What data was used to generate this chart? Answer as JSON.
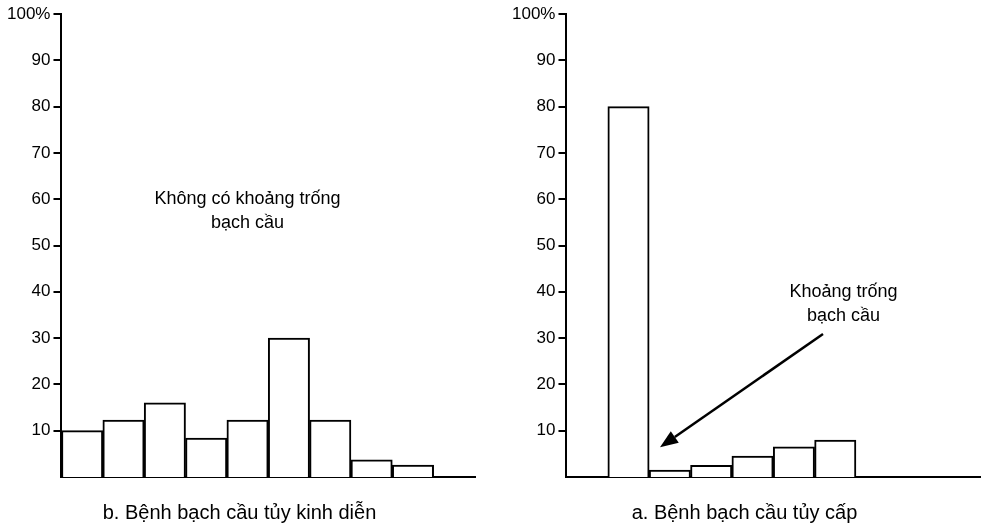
{
  "chart_data": [
    {
      "type": "bar",
      "title": "b. Bệnh bạch cầu tủy kinh diễn",
      "categories": [
        null,
        null,
        null,
        null,
        null,
        null,
        null,
        null,
        null,
        null
      ],
      "values": [
        10,
        12.3,
        16,
        8.4,
        12.3,
        30,
        12.3,
        3.7,
        2.6,
        null
      ],
      "color": "#ffffff",
      "ylim": [
        0,
        100
      ],
      "yticks": [
        10,
        20,
        30,
        40,
        50,
        60,
        70,
        80,
        90,
        {
          "value": 100,
          "label": "100%"
        }
      ],
      "grid": false,
      "legend": false,
      "annotations": [
        "Không có khoảng trống\nbạch cầu"
      ]
    },
    {
      "type": "bar",
      "title": "a. Bệnh bạch cầu tủy cấp",
      "categories": [
        null,
        null,
        null,
        null,
        null,
        null,
        null,
        null,
        null,
        null
      ],
      "values": [
        null,
        80,
        1.5,
        2.5,
        4.5,
        6.5,
        8,
        null,
        null,
        null
      ],
      "color": "#ffffff",
      "ylim": [
        0,
        100
      ],
      "yticks": [
        10,
        20,
        30,
        40,
        50,
        60,
        70,
        80,
        90,
        {
          "value": 100,
          "label": "100%"
        }
      ],
      "grid": false,
      "legend": false,
      "annotations": [
        "Khoảng trống\nbạch cầu"
      ]
    }
  ]
}
